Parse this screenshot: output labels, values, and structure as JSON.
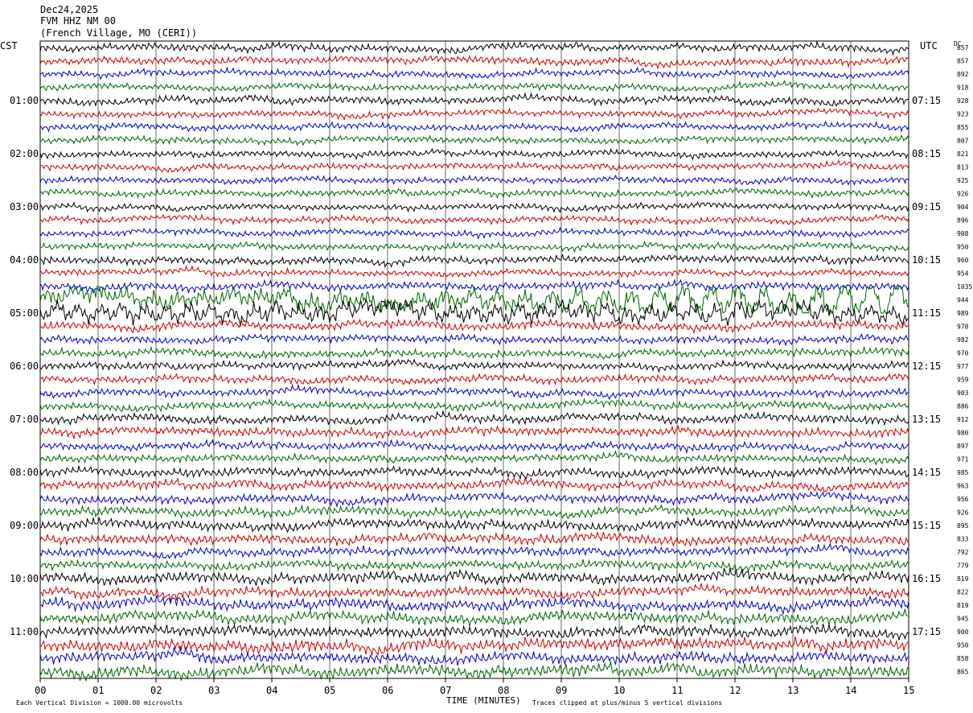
{
  "header": {
    "date": "Dec24,2025",
    "station": "FVM HHZ NM 00",
    "location": "(French Village, MO (CERI))"
  },
  "left_tz": "CST",
  "right_tz": "UTC",
  "dc_label": "DC",
  "footer": {
    "division": "Each Vertical Division = 1000.00 microvolts",
    "xlabel": "TIME (MINUTES)",
    "clip_note": "Traces clipped at plus/minus 5 vertical divisions"
  },
  "colors": {
    "trace_cycle": [
      "#000000",
      "#cc0000",
      "#0000cc",
      "#006600"
    ],
    "grid": "#000000"
  },
  "chart_data": {
    "type": "line",
    "title": "FVM HHZ NM 00",
    "xlabel": "TIME (MINUTES)",
    "xlim": [
      0,
      15
    ],
    "x_ticks": [
      "00",
      "01",
      "02",
      "03",
      "04",
      "05",
      "06",
      "07",
      "08",
      "09",
      "10",
      "11",
      "12",
      "13",
      "14",
      "15"
    ],
    "grid": true,
    "rows_per_hour": 4,
    "left_hour_labels": [
      "01:00",
      "02:00",
      "03:00",
      "04:00",
      "05:00",
      "06:00",
      "07:00",
      "08:00",
      "09:00",
      "10:00",
      "11:00"
    ],
    "right_hour_labels": [
      "07:15",
      "08:15",
      "09:15",
      "10:15",
      "11:15",
      "12:15",
      "13:15",
      "14:15",
      "15:15",
      "16:15",
      "17:15"
    ],
    "row_dc_values": [
      857,
      857,
      892,
      918,
      928,
      923,
      855,
      807,
      821,
      813,
      925,
      926,
      904,
      896,
      908,
      950,
      960,
      954,
      1035,
      944,
      989,
      978,
      982,
      970,
      977,
      959,
      903,
      886,
      912,
      980,
      897,
      971,
      985,
      963,
      956,
      926,
      895,
      833,
      792,
      779,
      819,
      822,
      819,
      945,
      900,
      950,
      858,
      865
    ],
    "trace_amplitude_divisions": [
      0.35,
      0.35,
      0.3,
      0.3,
      0.35,
      0.3,
      0.3,
      0.3,
      0.3,
      0.3,
      0.3,
      0.3,
      0.3,
      0.3,
      0.3,
      0.3,
      0.35,
      0.3,
      0.35,
      0.8,
      0.7,
      0.4,
      0.35,
      0.35,
      0.35,
      0.35,
      0.35,
      0.35,
      0.4,
      0.4,
      0.35,
      0.35,
      0.4,
      0.4,
      0.4,
      0.4,
      0.45,
      0.45,
      0.4,
      0.4,
      0.5,
      0.45,
      0.5,
      0.5,
      0.5,
      0.55,
      0.5,
      0.55
    ]
  }
}
